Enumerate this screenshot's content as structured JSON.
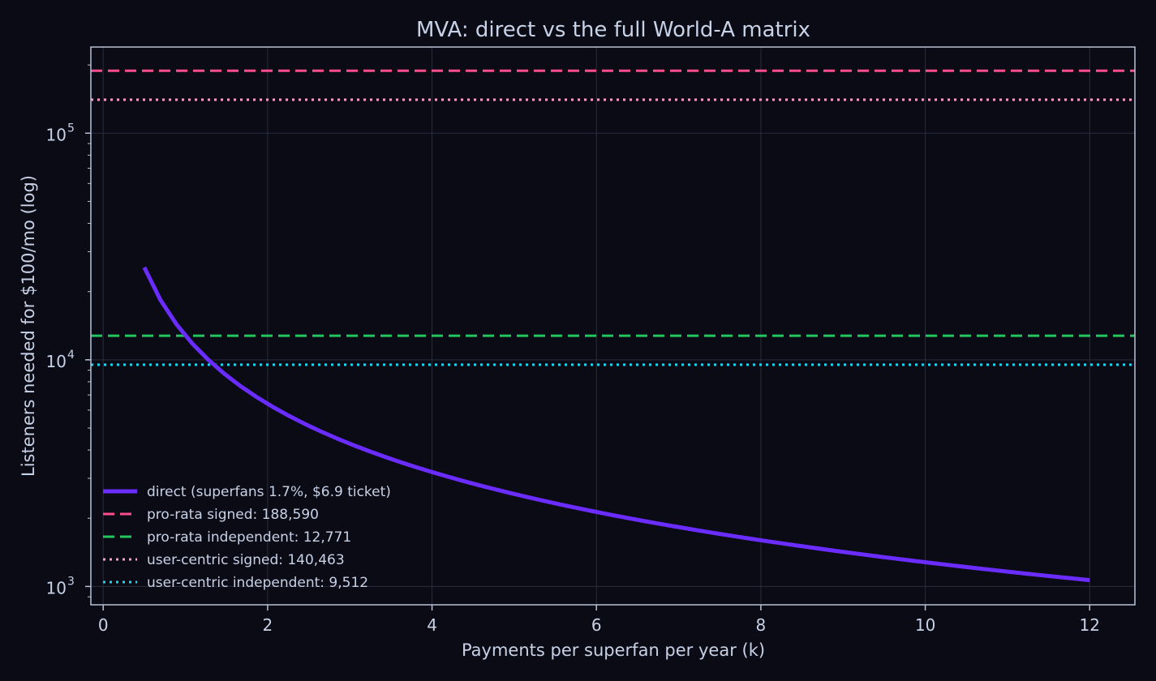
{
  "chart_data": {
    "type": "line",
    "title": "MVA: direct vs the full World-A matrix",
    "xlabel": "Payments per superfan per year (k)",
    "ylabel": "Listeners needed for $100/mo (log)",
    "xlim": [
      -0.15,
      12.55
    ],
    "ylim": [
      830,
      240000
    ],
    "yscale": "log",
    "grid": true,
    "legend_position": "lower-left",
    "x_ticks": [
      0,
      2,
      4,
      6,
      8,
      10,
      12
    ],
    "y_ticks": [
      {
        "value": 1000,
        "base": "10",
        "exp": "3"
      },
      {
        "value": 10000,
        "base": "10",
        "exp": "4"
      },
      {
        "value": 100000,
        "base": "10",
        "exp": "5"
      }
    ],
    "series": [
      {
        "name": "direct (superfans 1.7%, $6.9 ticket)",
        "kind": "curve",
        "color": "#6a2cff",
        "style": "solid",
        "x_start": 0.5,
        "x_end": 12,
        "points": 60,
        "constant_k_times_y": 12790
      }
    ],
    "reference_lines": [
      {
        "name": "pro-rata signed: 188,590",
        "value": 188590,
        "color": "#ff4d8d",
        "style": "dashed"
      },
      {
        "name": "pro-rata independent: 12,771",
        "value": 12771,
        "color": "#22c55e",
        "style": "dashed"
      },
      {
        "name": "user-centric signed: 140,463",
        "value": 140463,
        "color": "#ff9ec9",
        "style": "dotted"
      },
      {
        "name": "user-centric independent: 9,512",
        "value": 9512,
        "color": "#22d3ee",
        "style": "dotted"
      }
    ]
  },
  "colors": {
    "background": "#0b0b16",
    "text": "#c7d2e6",
    "axis": "#b8c2d6",
    "grid": "#2a2d3e"
  }
}
